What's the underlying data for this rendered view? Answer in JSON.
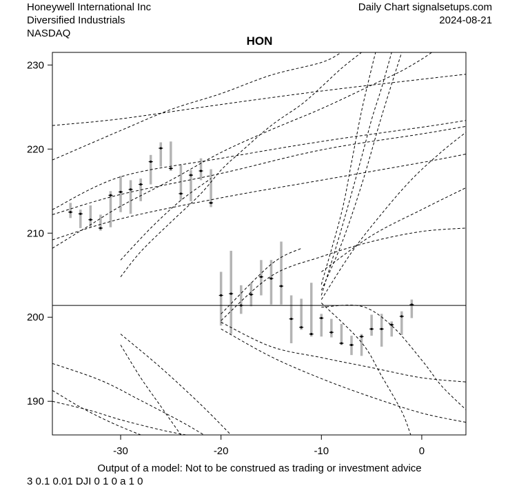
{
  "header": {
    "company": "Honeywell International Inc",
    "sector": "Diversified Industrials",
    "exchange": "NASDAQ",
    "source": "Daily Chart signalsetups.com",
    "date": "2024-08-21"
  },
  "footer": {
    "disclaimer": "Output of a model: Not to be construed as trading or investment advice",
    "params": "3 0.1 0.01 DJI 0 1 0 a 1 0"
  },
  "chart_data": {
    "type": "candlestick",
    "title": "HON",
    "xlabel": "",
    "ylabel": "",
    "xlim": [
      -36.8,
      4.4
    ],
    "ylim": [
      186,
      231.5
    ],
    "x_ticks": [
      -30,
      -20,
      -10,
      0
    ],
    "y_ticks": [
      190,
      200,
      210,
      220,
      230
    ],
    "reference_line": 201.4,
    "colors": {
      "range_bar": "#b4b4b4",
      "close_tick": "#000000",
      "frame": "#000000",
      "model_lines": "#000000"
    },
    "bars": [
      {
        "x": -35,
        "low": 211.8,
        "high": 213.6,
        "close": 212.5
      },
      {
        "x": -34,
        "low": 210.6,
        "high": 212.8,
        "close": 212.3
      },
      {
        "x": -33,
        "low": 210.7,
        "high": 213.3,
        "close": 211.6
      },
      {
        "x": -32,
        "low": 210.3,
        "high": 212.2,
        "close": 210.6
      },
      {
        "x": -31,
        "low": 210.7,
        "high": 215.0,
        "close": 214.5
      },
      {
        "x": -30,
        "low": 212.5,
        "high": 216.8,
        "close": 214.9
      },
      {
        "x": -29,
        "low": 212.3,
        "high": 216.3,
        "close": 215.2
      },
      {
        "x": -28,
        "low": 213.8,
        "high": 216.5,
        "close": 215.8
      },
      {
        "x": -27,
        "low": 215.8,
        "high": 219.3,
        "close": 218.5
      },
      {
        "x": -26,
        "low": 217.9,
        "high": 220.8,
        "close": 220.1
      },
      {
        "x": -25,
        "low": 217.4,
        "high": 220.9,
        "close": 217.7
      },
      {
        "x": -24,
        "low": 213.9,
        "high": 218.1,
        "close": 214.7
      },
      {
        "x": -23,
        "low": 213.8,
        "high": 217.5,
        "close": 216.9
      },
      {
        "x": -22,
        "low": 216.3,
        "high": 218.9,
        "close": 217.4
      },
      {
        "x": -21,
        "low": 213.1,
        "high": 217.6,
        "close": 213.6
      },
      {
        "x": -20,
        "low": 199.0,
        "high": 205.4,
        "close": 202.6
      },
      {
        "x": -19,
        "low": 198.0,
        "high": 207.9,
        "close": 202.8
      },
      {
        "x": -18,
        "low": 200.4,
        "high": 203.8,
        "close": 201.4
      },
      {
        "x": -17,
        "low": 201.3,
        "high": 204.1,
        "close": 202.7
      },
      {
        "x": -16,
        "low": 202.6,
        "high": 206.8,
        "close": 204.8
      },
      {
        "x": -15,
        "low": 201.5,
        "high": 206.8,
        "close": 204.6
      },
      {
        "x": -14,
        "low": 201.5,
        "high": 209.0,
        "close": 203.7
      },
      {
        "x": -13,
        "low": 196.9,
        "high": 202.6,
        "close": 199.8
      },
      {
        "x": -12,
        "low": 198.5,
        "high": 202.2,
        "close": 198.8
      },
      {
        "x": -11,
        "low": 197.7,
        "high": 204.1,
        "close": 198.0
      },
      {
        "x": -10,
        "low": 197.7,
        "high": 200.4,
        "close": 199.9
      },
      {
        "x": -9,
        "low": 197.6,
        "high": 199.8,
        "close": 198.2
      },
      {
        "x": -8,
        "low": 196.7,
        "high": 199.2,
        "close": 196.9
      },
      {
        "x": -7,
        "low": 195.5,
        "high": 197.8,
        "close": 196.7
      },
      {
        "x": -6,
        "low": 195.4,
        "high": 198.0,
        "close": 197.7
      },
      {
        "x": -5,
        "low": 197.8,
        "high": 200.3,
        "close": 198.6
      },
      {
        "x": -4,
        "low": 196.5,
        "high": 200.4,
        "close": 198.6
      },
      {
        "x": -3,
        "low": 197.7,
        "high": 199.5,
        "close": 199.1
      },
      {
        "x": -2,
        "low": 197.9,
        "high": 200.7,
        "close": 200.1
      },
      {
        "x": -1,
        "low": 199.9,
        "high": 202.1,
        "close": 201.5
      }
    ],
    "model_curves": [
      {
        "name": "",
        "points": [
          [
            -36.8,
            212.2
          ],
          [
            -30,
            214.6
          ],
          [
            -20,
            217.1
          ],
          [
            -10,
            219.9
          ],
          [
            0,
            221.8
          ],
          [
            4.4,
            222.7
          ]
        ]
      },
      {
        "name": "",
        "points": [
          [
            -36.8,
            212.8
          ],
          [
            -30,
            216.7
          ],
          [
            -20,
            218.9
          ],
          [
            -10,
            220.9
          ],
          [
            0,
            222.6
          ],
          [
            4.4,
            223.4
          ]
        ]
      },
      {
        "name": "",
        "points": [
          [
            -36.8,
            222.8
          ],
          [
            -30,
            223.6
          ],
          [
            -20,
            225.3
          ],
          [
            -10,
            226.9
          ],
          [
            0,
            228.3
          ],
          [
            4.4,
            228.9
          ]
        ]
      },
      {
        "name": "",
        "points": [
          [
            -36.8,
            218.7
          ],
          [
            -30,
            222.2
          ],
          [
            -25,
            224.7
          ],
          [
            -20,
            226.6
          ],
          [
            -15,
            228.8
          ],
          [
            -10,
            230.3
          ],
          [
            -8,
            231.5
          ]
        ]
      },
      {
        "name": "",
        "points": [
          [
            -36.8,
            209.2
          ],
          [
            -30,
            211.7
          ],
          [
            -20,
            214.2
          ],
          [
            -10,
            216.3
          ],
          [
            0,
            218.4
          ],
          [
            4.4,
            219.4
          ]
        ]
      },
      {
        "name": "",
        "points": [
          [
            -36.8,
            208.2
          ],
          [
            -33,
            211.0
          ],
          [
            -30,
            213.2
          ],
          [
            -25,
            216.3
          ],
          [
            -20,
            219.6
          ],
          [
            -15,
            222.3
          ],
          [
            -10,
            224.8
          ],
          [
            -5,
            227.6
          ],
          [
            -2,
            229.3
          ],
          [
            0,
            230.7
          ],
          [
            1,
            231.5
          ]
        ]
      },
      {
        "name": "",
        "points": [
          [
            -30,
            204.8
          ],
          [
            -28,
            207.8
          ],
          [
            -25,
            211.3
          ],
          [
            -22,
            214.7
          ],
          [
            -20,
            217.5
          ],
          [
            -18,
            219.7
          ],
          [
            -15,
            222.8
          ],
          [
            -12,
            225.3
          ],
          [
            -10,
            227.4
          ],
          [
            -8,
            229.6
          ],
          [
            -6,
            231.5
          ]
        ]
      },
      {
        "name": "",
        "points": [
          [
            -30,
            206.8
          ],
          [
            -27,
            210.6
          ],
          [
            -24,
            213.9
          ],
          [
            -21,
            216.5
          ]
        ]
      },
      {
        "name": "",
        "points": [
          [
            -20,
            199.6
          ],
          [
            -15,
            204.9
          ],
          [
            -10,
            207.2
          ],
          [
            -5,
            209.0
          ],
          [
            0,
            210.2
          ],
          [
            4.4,
            210.6
          ]
        ]
      },
      {
        "name": "",
        "points": [
          [
            -20,
            200.4
          ],
          [
            -15,
            206.3
          ],
          [
            -12,
            208.2
          ]
        ]
      },
      {
        "name": "",
        "points": [
          [
            -10,
            205.4
          ],
          [
            -5,
            209.7
          ],
          [
            0,
            212.8
          ],
          [
            4.4,
            215.4
          ]
        ]
      },
      {
        "name": "",
        "points": [
          [
            -20,
            199.4
          ],
          [
            -15,
            196.5
          ],
          [
            -10,
            195.2
          ],
          [
            -5,
            194.0
          ],
          [
            0,
            192.8
          ],
          [
            4.4,
            192.3
          ]
        ]
      },
      {
        "name": "",
        "points": [
          [
            -20,
            198.6
          ],
          [
            -15,
            195.3
          ],
          [
            -10,
            192.7
          ],
          [
            -5,
            190.5
          ],
          [
            0,
            188.6
          ],
          [
            4.4,
            187.5
          ]
        ]
      },
      {
        "name": "",
        "points": [
          [
            -10,
            203.2
          ],
          [
            -8,
            208.7
          ],
          [
            -6,
            215.7
          ],
          [
            -4,
            223.9
          ],
          [
            -2,
            231.5
          ]
        ]
      },
      {
        "name": "",
        "points": [
          [
            -10,
            202.6
          ],
          [
            -8,
            210.5
          ],
          [
            -6,
            219.0
          ],
          [
            -5,
            223.5
          ],
          [
            -4,
            227.3
          ],
          [
            -3,
            231.5
          ]
        ]
      },
      {
        "name": "",
        "points": [
          [
            -10,
            202.1
          ],
          [
            -7,
            207.7
          ],
          [
            -4,
            212.3
          ],
          [
            -1,
            216.4
          ],
          [
            2,
            219.7
          ],
          [
            4.4,
            222.0
          ]
        ]
      },
      {
        "name": "",
        "points": [
          [
            -10,
            203.9
          ],
          [
            -8,
            212.4
          ],
          [
            -7,
            218.4
          ],
          [
            -6,
            224.5
          ],
          [
            -5,
            229.6
          ],
          [
            -4.6,
            231.5
          ]
        ]
      },
      {
        "name": "",
        "points": [
          [
            -10,
            201.2
          ],
          [
            -6,
            201.3
          ],
          [
            -3,
            199.0
          ],
          [
            0,
            194.9
          ],
          [
            2,
            191.8
          ],
          [
            4.4,
            189.0
          ]
        ]
      },
      {
        "name": "",
        "points": [
          [
            -10,
            201.7
          ],
          [
            -6,
            197.0
          ],
          [
            -4,
            193.0
          ],
          [
            -2,
            188.8
          ],
          [
            -1.1,
            186.0
          ]
        ]
      },
      {
        "name": "",
        "points": [
          [
            -30,
            198.0
          ],
          [
            -26,
            194.0
          ],
          [
            -22,
            189.6
          ],
          [
            -19,
            186.0
          ]
        ]
      },
      {
        "name": "",
        "points": [
          [
            -30,
            196.7
          ],
          [
            -28,
            192.8
          ],
          [
            -26,
            189.4
          ],
          [
            -24,
            186.0
          ]
        ]
      },
      {
        "name": "",
        "points": [
          [
            -36.8,
            194.5
          ],
          [
            -32,
            192.5
          ],
          [
            -28,
            190.1
          ],
          [
            -24,
            187.6
          ],
          [
            -21.7,
            186.0
          ]
        ]
      },
      {
        "name": "",
        "points": [
          [
            -36.8,
            191.3
          ],
          [
            -34,
            189.3
          ],
          [
            -31,
            187.5
          ],
          [
            -28,
            186.0
          ]
        ]
      },
      {
        "name": "",
        "points": [
          [
            -36.8,
            190.0
          ],
          [
            -33,
            188.9
          ],
          [
            -30,
            187.8
          ],
          [
            -26,
            186.6
          ],
          [
            -23.5,
            186.0
          ]
        ]
      }
    ]
  }
}
